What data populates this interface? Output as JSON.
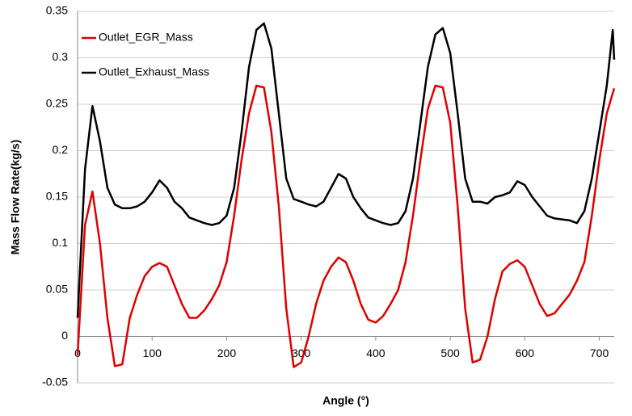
{
  "chart_data": {
    "type": "line",
    "x_label": "Angle (°)",
    "y_label": "Mass Flow Rate(kg/s)",
    "x": [
      0,
      10,
      20,
      30,
      40,
      50,
      60,
      70,
      80,
      90,
      100,
      110,
      120,
      130,
      140,
      150,
      160,
      170,
      180,
      190,
      200,
      210,
      220,
      230,
      240,
      250,
      260,
      270,
      280,
      290,
      300,
      310,
      320,
      330,
      340,
      350,
      360,
      370,
      380,
      390,
      400,
      410,
      420,
      430,
      440,
      450,
      460,
      470,
      480,
      490,
      500,
      510,
      520,
      530,
      540,
      550,
      560,
      570,
      580,
      590,
      600,
      610,
      620,
      630,
      640,
      650,
      660,
      670,
      680,
      690,
      700,
      710,
      718,
      720
    ],
    "series": [
      {
        "name": "Outlet_EGR_Mass",
        "color": "#e00000",
        "values": [
          -0.02,
          0.12,
          0.156,
          0.1,
          0.02,
          -0.032,
          -0.03,
          0.02,
          0.045,
          0.065,
          0.075,
          0.079,
          0.075,
          0.055,
          0.035,
          0.02,
          0.02,
          0.028,
          0.04,
          0.055,
          0.08,
          0.13,
          0.19,
          0.24,
          0.27,
          0.268,
          0.22,
          0.14,
          0.03,
          -0.033,
          -0.028,
          0,
          0.035,
          0.06,
          0.075,
          0.085,
          0.08,
          0.06,
          0.035,
          0.018,
          0.015,
          0.022,
          0.035,
          0.05,
          0.08,
          0.13,
          0.19,
          0.245,
          0.27,
          0.268,
          0.23,
          0.14,
          0.03,
          -0.028,
          -0.025,
          0,
          0.04,
          0.07,
          0.078,
          0.082,
          0.075,
          0.055,
          0.035,
          0.022,
          0.025,
          0.035,
          0.045,
          0.06,
          0.08,
          0.13,
          0.19,
          0.24,
          0.262,
          0.267
        ]
      },
      {
        "name": "Outlet_Exhaust_Mass",
        "color": "#000000",
        "values": [
          0.02,
          0.18,
          0.248,
          0.21,
          0.16,
          0.142,
          0.138,
          0.138,
          0.14,
          0.145,
          0.155,
          0.168,
          0.16,
          0.145,
          0.138,
          0.128,
          0.125,
          0.122,
          0.12,
          0.122,
          0.13,
          0.16,
          0.22,
          0.29,
          0.33,
          0.337,
          0.31,
          0.24,
          0.17,
          0.148,
          0.145,
          0.142,
          0.14,
          0.145,
          0.16,
          0.175,
          0.17,
          0.15,
          0.138,
          0.128,
          0.125,
          0.122,
          0.12,
          0.122,
          0.135,
          0.17,
          0.23,
          0.29,
          0.325,
          0.332,
          0.305,
          0.24,
          0.17,
          0.145,
          0.145,
          0.143,
          0.15,
          0.152,
          0.155,
          0.167,
          0.163,
          0.15,
          0.14,
          0.13,
          0.127,
          0.126,
          0.125,
          0.122,
          0.135,
          0.17,
          0.22,
          0.27,
          0.33,
          0.298
        ]
      }
    ],
    "xlim": [
      0,
      720
    ],
    "xticks": [
      0,
      100,
      200,
      300,
      400,
      500,
      600,
      700
    ],
    "ylim": [
      -0.05,
      0.35
    ],
    "yticks": [
      -0.05,
      0,
      0.05,
      0.1,
      0.15,
      0.2,
      0.25,
      0.3,
      0.35
    ],
    "grid": true,
    "legend": "upper left"
  }
}
